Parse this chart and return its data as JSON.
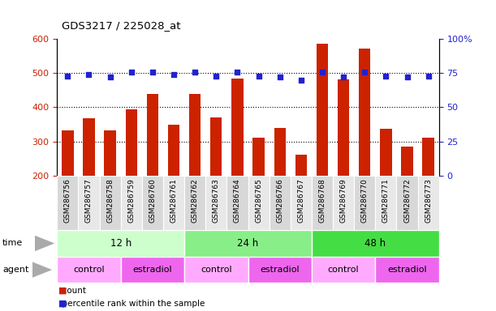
{
  "title": "GDS3217 / 225028_at",
  "samples": [
    "GSM286756",
    "GSM286757",
    "GSM286758",
    "GSM286759",
    "GSM286760",
    "GSM286761",
    "GSM286762",
    "GSM286763",
    "GSM286764",
    "GSM286765",
    "GSM286766",
    "GSM286767",
    "GSM286768",
    "GSM286769",
    "GSM286770",
    "GSM286771",
    "GSM286772",
    "GSM286773"
  ],
  "counts": [
    333,
    368,
    333,
    393,
    440,
    350,
    440,
    370,
    483,
    312,
    340,
    262,
    585,
    482,
    572,
    338,
    285,
    312
  ],
  "percentiles": [
    73,
    74,
    72,
    76,
    76,
    74,
    76,
    73,
    76,
    73,
    72,
    70,
    76,
    72,
    76,
    73,
    72,
    73
  ],
  "ylim_left": [
    200,
    600
  ],
  "ylim_right": [
    0,
    100
  ],
  "yticks_left": [
    200,
    300,
    400,
    500,
    600
  ],
  "yticks_right": [
    0,
    25,
    50,
    75,
    100
  ],
  "bar_color": "#cc2200",
  "dot_color": "#2222cc",
  "bar_bottom": 200,
  "time_groups": [
    {
      "label": "12 h",
      "start": 0,
      "end": 6,
      "color": "#ccffcc"
    },
    {
      "label": "24 h",
      "start": 6,
      "end": 12,
      "color": "#88ee88"
    },
    {
      "label": "48 h",
      "start": 12,
      "end": 18,
      "color": "#44dd44"
    }
  ],
  "agent_groups": [
    {
      "label": "control",
      "start": 0,
      "end": 3,
      "color": "#ffaaff"
    },
    {
      "label": "estradiol",
      "start": 3,
      "end": 6,
      "color": "#ee66ee"
    },
    {
      "label": "control",
      "start": 6,
      "end": 9,
      "color": "#ffaaff"
    },
    {
      "label": "estradiol",
      "start": 9,
      "end": 12,
      "color": "#ee66ee"
    },
    {
      "label": "control",
      "start": 12,
      "end": 15,
      "color": "#ffaaff"
    },
    {
      "label": "estradiol",
      "start": 15,
      "end": 18,
      "color": "#ee66ee"
    }
  ],
  "tick_label_color_left": "#cc2200",
  "tick_label_color_right": "#2222cc",
  "title_color": "#000000",
  "sample_bg_even": "#d8d8d8",
  "sample_bg_odd": "#e8e8e8"
}
